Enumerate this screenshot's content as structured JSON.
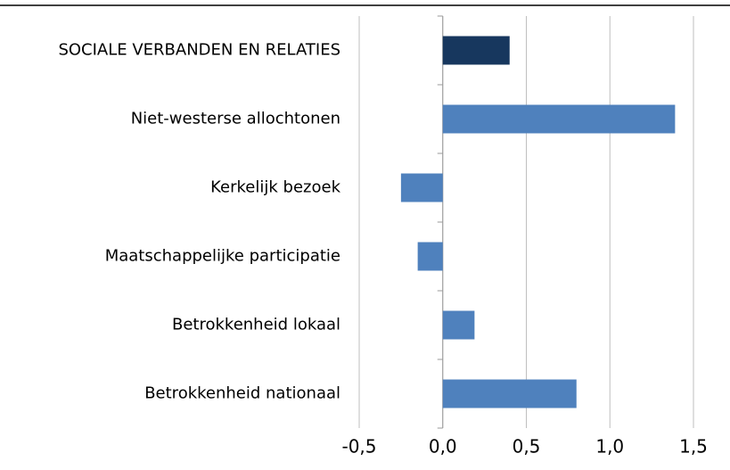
{
  "chart_data": {
    "type": "barh",
    "categories": [
      "SOCIALE VERBANDEN EN RELATIES",
      "Niet-westerse allochtonen",
      "Kerkelijk bezoek",
      "Maatschappelijke participatie",
      "Betrokkenheid lokaal",
      "Betrokkenheid nationaal"
    ],
    "values": [
      0.4,
      1.39,
      -0.25,
      -0.15,
      0.19,
      0.8
    ],
    "colors": [
      "#17375e",
      "#4f81bd",
      "#4f81bd",
      "#4f81bd",
      "#4f81bd",
      "#4f81bd"
    ],
    "xlim": [
      -0.5,
      1.5
    ],
    "xticks": [
      {
        "value": -0.5,
        "label": "-0,5"
      },
      {
        "value": 0,
        "label": "0,0"
      },
      {
        "value": 0.5,
        "label": "0,5"
      },
      {
        "value": 1,
        "label": "1,0"
      },
      {
        "value": 1.5,
        "label": "1,5"
      }
    ],
    "grid": true
  }
}
